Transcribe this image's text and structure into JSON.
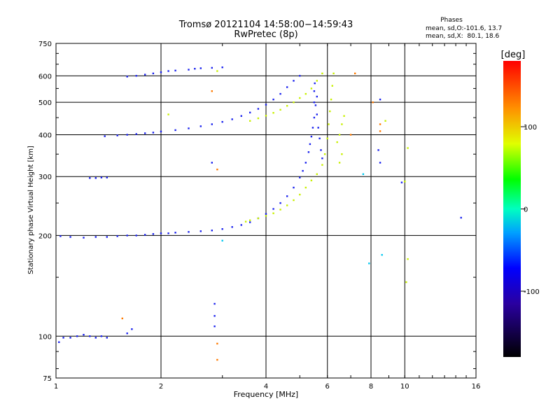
{
  "chart_data": {
    "type": "scatter",
    "title": "Tromsø 20121104 14:58:00−14:59:43",
    "subtitle": "RwPretec (8p)",
    "stats": {
      "header": "Phases",
      "line_o": "mean, sd,O:-101.6, 13.7",
      "line_x": "mean, sd,X:  80.1, 18.6"
    },
    "xlabel": "Frequency [MHz]",
    "ylabel": "Stationary phase Virtual Height [km]",
    "xscale": "log",
    "yscale": "log",
    "xlim": [
      1,
      16
    ],
    "ylim": [
      75,
      750
    ],
    "x_ticks": [
      1,
      2,
      4,
      6,
      8,
      10,
      16
    ],
    "x_tick_labels": [
      "1",
      "2",
      "4",
      "6",
      "8",
      "10",
      "16"
    ],
    "y_ticks": [
      75,
      100,
      200,
      300,
      400,
      500,
      600,
      750
    ],
    "y_tick_labels": [
      "75",
      "100",
      "200",
      "300",
      "400",
      "500",
      "600",
      "750"
    ],
    "grid": true,
    "colorbar": {
      "label": "[deg]",
      "range": [
        -180,
        180
      ],
      "ticks": [
        100,
        0,
        -100
      ],
      "tick_labels": [
        "100",
        "0",
        "-100"
      ]
    },
    "series": [
      {
        "mode": "O",
        "phase": -100,
        "color": "#1a22ee",
        "points": [
          [
            1.02,
            96
          ],
          [
            1.05,
            99
          ],
          [
            1.1,
            99
          ],
          [
            1.15,
            100
          ],
          [
            1.2,
            101
          ],
          [
            1.25,
            100
          ],
          [
            1.3,
            99
          ],
          [
            1.35,
            100
          ],
          [
            1.4,
            99
          ],
          [
            1.6,
            102
          ],
          [
            1.65,
            105
          ],
          [
            1.03,
            199
          ],
          [
            1.1,
            198
          ],
          [
            1.2,
            197
          ],
          [
            1.3,
            198
          ],
          [
            1.4,
            198
          ],
          [
            1.5,
            199
          ],
          [
            1.6,
            200
          ],
          [
            1.7,
            200
          ],
          [
            1.8,
            201
          ],
          [
            1.9,
            202
          ],
          [
            2.0,
            203
          ],
          [
            2.1,
            203
          ],
          [
            2.2,
            204
          ],
          [
            2.4,
            205
          ],
          [
            2.6,
            206
          ],
          [
            2.8,
            207
          ],
          [
            3.0,
            209
          ],
          [
            3.2,
            212
          ],
          [
            3.4,
            215
          ],
          [
            3.6,
            219
          ],
          [
            3.8,
            225
          ],
          [
            4.0,
            232
          ],
          [
            4.2,
            240
          ],
          [
            4.4,
            250
          ],
          [
            4.6,
            262
          ],
          [
            4.8,
            278
          ],
          [
            5.0,
            298
          ],
          [
            5.1,
            312
          ],
          [
            5.2,
            330
          ],
          [
            5.3,
            355
          ],
          [
            5.35,
            375
          ],
          [
            5.4,
            395
          ],
          [
            5.45,
            420
          ],
          [
            5.5,
            450
          ],
          [
            5.55,
            490
          ],
          [
            5.6,
            520
          ],
          [
            1.25,
            297
          ],
          [
            1.3,
            297
          ],
          [
            1.35,
            298
          ],
          [
            1.4,
            298
          ],
          [
            1.38,
            396
          ],
          [
            1.5,
            398
          ],
          [
            1.6,
            400
          ],
          [
            1.7,
            402
          ],
          [
            1.8,
            404
          ],
          [
            1.9,
            406
          ],
          [
            2.0,
            409
          ],
          [
            2.2,
            413
          ],
          [
            2.4,
            418
          ],
          [
            2.6,
            424
          ],
          [
            2.8,
            430
          ],
          [
            3.0,
            437
          ],
          [
            3.2,
            445
          ],
          [
            3.4,
            455
          ],
          [
            3.6,
            466
          ],
          [
            3.8,
            478
          ],
          [
            4.0,
            492
          ],
          [
            4.2,
            510
          ],
          [
            4.4,
            530
          ],
          [
            4.6,
            555
          ],
          [
            4.8,
            580
          ],
          [
            5.0,
            600
          ],
          [
            1.6,
            597
          ],
          [
            1.7,
            600
          ],
          [
            1.8,
            605
          ],
          [
            1.9,
            610
          ],
          [
            2.0,
            615
          ],
          [
            2.1,
            620
          ],
          [
            2.2,
            622
          ],
          [
            2.4,
            626
          ],
          [
            2.5,
            630
          ],
          [
            2.6,
            632
          ],
          [
            2.8,
            634
          ],
          [
            3.0,
            636
          ],
          [
            5.5,
            500
          ],
          [
            5.6,
            460
          ],
          [
            5.65,
            420
          ],
          [
            5.7,
            390
          ],
          [
            5.75,
            360
          ],
          [
            5.8,
            340
          ],
          [
            5.5,
            540
          ],
          [
            5.52,
            570
          ],
          [
            2.85,
            125
          ],
          [
            2.85,
            115
          ],
          [
            2.85,
            107
          ],
          [
            2.8,
            330
          ],
          [
            8.5,
            510
          ],
          [
            8.4,
            360
          ],
          [
            8.5,
            330
          ],
          [
            9.8,
            288
          ],
          [
            14.5,
            226
          ]
        ]
      },
      {
        "mode": "X",
        "phase": 80,
        "color": "#c8f000",
        "points": [
          [
            3.5,
            220
          ],
          [
            3.6,
            222
          ],
          [
            3.8,
            225
          ],
          [
            4.0,
            229
          ],
          [
            4.2,
            233
          ],
          [
            4.4,
            239
          ],
          [
            4.6,
            246
          ],
          [
            4.8,
            255
          ],
          [
            5.0,
            265
          ],
          [
            5.2,
            278
          ],
          [
            5.4,
            292
          ],
          [
            5.6,
            305
          ],
          [
            5.8,
            325
          ],
          [
            5.9,
            350
          ],
          [
            6.0,
            390
          ],
          [
            6.05,
            430
          ],
          [
            6.1,
            470
          ],
          [
            6.15,
            510
          ],
          [
            6.2,
            560
          ],
          [
            6.25,
            610
          ],
          [
            3.6,
            440
          ],
          [
            3.8,
            448
          ],
          [
            4.0,
            456
          ],
          [
            4.2,
            465
          ],
          [
            4.4,
            475
          ],
          [
            4.6,
            488
          ],
          [
            4.8,
            500
          ],
          [
            5.0,
            515
          ],
          [
            5.2,
            530
          ],
          [
            5.4,
            550
          ],
          [
            5.6,
            580
          ],
          [
            5.8,
            610
          ],
          [
            6.4,
            380
          ],
          [
            6.5,
            400
          ],
          [
            6.6,
            430
          ],
          [
            6.7,
            455
          ],
          [
            6.6,
            350
          ],
          [
            6.5,
            330
          ],
          [
            2.1,
            460
          ],
          [
            8.8,
            440
          ],
          [
            10.2,
            365
          ],
          [
            10.2,
            170
          ],
          [
            10.1,
            145
          ],
          [
            2.9,
            620
          ],
          [
            10.0,
            290
          ]
        ]
      },
      {
        "mode": "X",
        "phase": 140,
        "color": "#ff7a00",
        "points": [
          [
            1.55,
            113
          ],
          [
            2.8,
            540
          ],
          [
            2.9,
            315
          ],
          [
            7.2,
            610
          ],
          [
            8.1,
            500
          ],
          [
            8.5,
            430
          ],
          [
            8.5,
            410
          ],
          [
            7.0,
            400
          ],
          [
            2.9,
            95
          ],
          [
            2.9,
            85
          ]
        ]
      },
      {
        "mode": "O",
        "phase": -50,
        "color": "#00c8f0",
        "points": [
          [
            3.0,
            193
          ],
          [
            8.6,
            175
          ],
          [
            7.9,
            165
          ],
          [
            7.6,
            305
          ]
        ]
      }
    ]
  }
}
